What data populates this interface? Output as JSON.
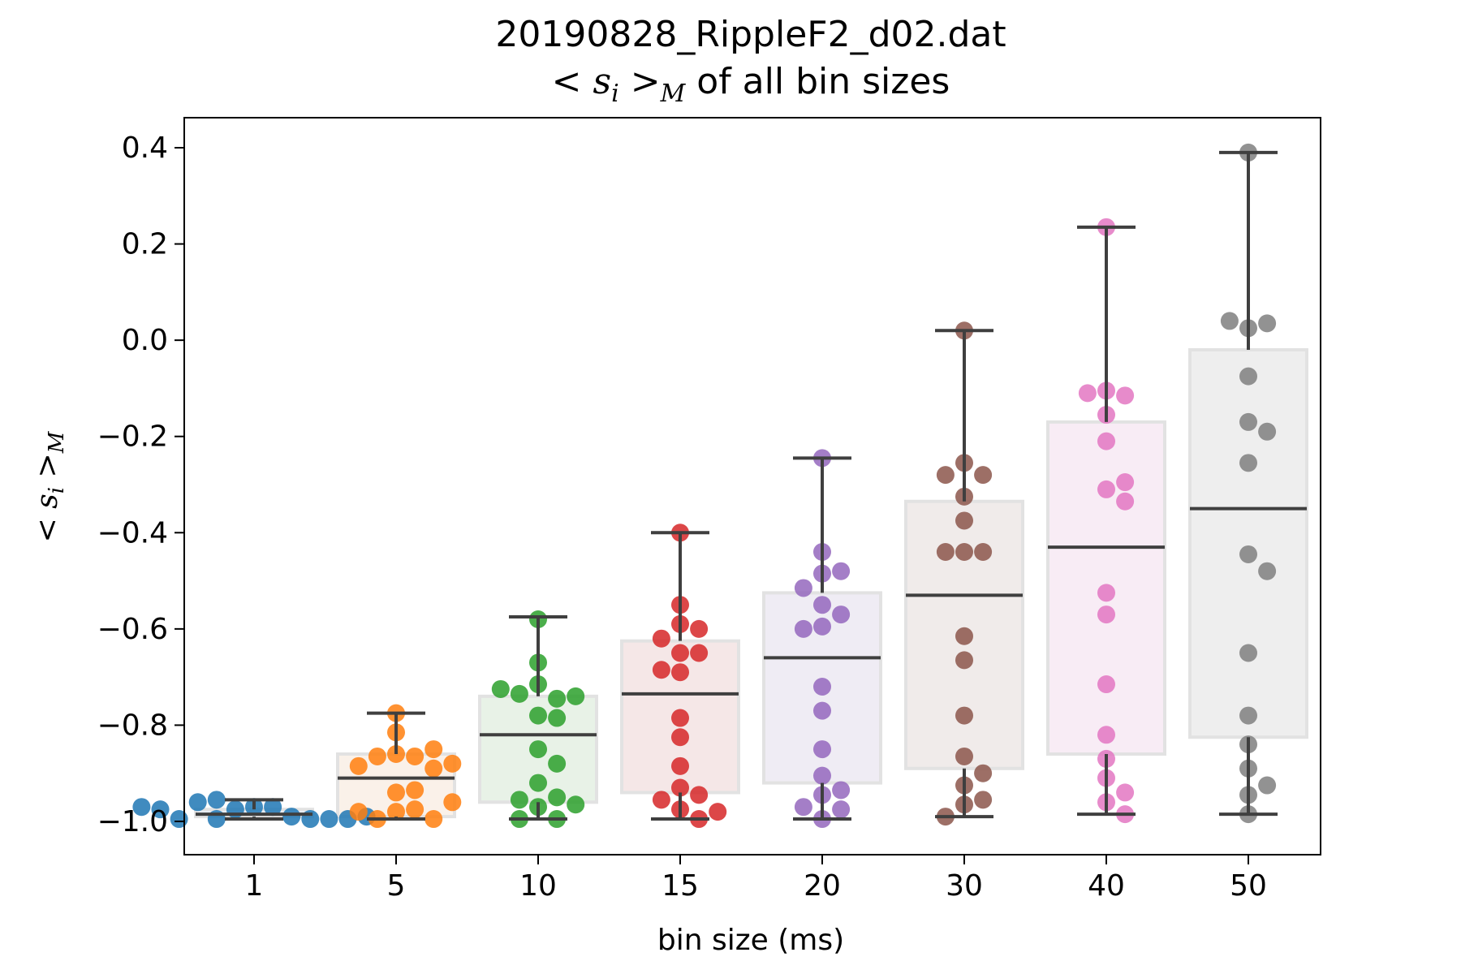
{
  "chart_data": {
    "type": "box",
    "title_line1": "20190828_RippleF2_d02.dat",
    "title_line2_math": "< s",
    "title_line2_sub": "i",
    "title_line2_gt": " >",
    "title_line2_m": "M",
    "title_line2_rest": " of all bin sizes",
    "ylabel_math": "< s",
    "ylabel_sub": "i",
    "ylabel_gt": " >",
    "ylabel_m": "M",
    "xlabel": "bin size (ms)",
    "ylim": [
      -1.07,
      0.46
    ],
    "yticks": [
      0.4,
      0.2,
      0.0,
      -0.2,
      -0.4,
      -0.6,
      -0.8,
      -1.0
    ],
    "ytick_labels": [
      "0.4",
      "0.2",
      "0.0",
      "−0.2",
      "−0.4",
      "−0.6",
      "−0.8",
      "−1.0"
    ],
    "categories": [
      "1",
      "5",
      "10",
      "15",
      "20",
      "30",
      "40",
      "50"
    ],
    "colors": [
      "#1f77b4",
      "#ff7f0e",
      "#2ca02c",
      "#d62728",
      "#9467bd",
      "#8c564b",
      "#e377c2",
      "#7f7f7f"
    ],
    "box_fills": [
      "#e8eef4",
      "#faf1e9",
      "#e8f2e7",
      "#f5e7e7",
      "#efecf4",
      "#f0ebea",
      "#f8ecf5",
      "#eeeeee"
    ],
    "grid": false,
    "legend": "none",
    "boxes": [
      {
        "category": "1",
        "whislo": -0.995,
        "q1": -0.99,
        "median": -0.985,
        "q3": -0.975,
        "whishi": -0.955
      },
      {
        "category": "5",
        "whislo": -0.995,
        "q1": -0.99,
        "median": -0.91,
        "q3": -0.86,
        "whishi": -0.775
      },
      {
        "category": "10",
        "whislo": -0.995,
        "q1": -0.96,
        "median": -0.82,
        "q3": -0.74,
        "whishi": -0.575
      },
      {
        "category": "15",
        "whislo": -0.995,
        "q1": -0.94,
        "median": -0.735,
        "q3": -0.625,
        "whishi": -0.4
      },
      {
        "category": "20",
        "whislo": -0.995,
        "q1": -0.92,
        "median": -0.66,
        "q3": -0.525,
        "whishi": -0.245
      },
      {
        "category": "30",
        "whislo": -0.99,
        "q1": -0.89,
        "median": -0.53,
        "q3": -0.335,
        "whishi": 0.02
      },
      {
        "category": "40",
        "whislo": -0.985,
        "q1": -0.86,
        "median": -0.43,
        "q3": -0.17,
        "whishi": 0.235
      },
      {
        "category": "50",
        "whislo": -0.985,
        "q1": -0.825,
        "median": -0.35,
        "q3": -0.02,
        "whishi": 0.39
      }
    ],
    "points": [
      [
        -0.97,
        -0.97,
        -0.975,
        -0.99,
        -0.995,
        -0.995,
        -0.96,
        -0.955,
        -0.995,
        -0.995,
        -0.995,
        -0.975,
        -0.99,
        -0.97
      ],
      [
        -0.86,
        -0.865,
        -0.865,
        -0.775,
        -0.815,
        -0.85,
        -0.885,
        -0.89,
        -0.88,
        -0.94,
        -0.935,
        -0.975,
        -0.98,
        -0.995,
        -0.995,
        -0.98,
        -0.96
      ],
      [
        -0.58,
        -0.67,
        -0.715,
        -0.745,
        -0.735,
        -0.74,
        -0.725,
        -0.78,
        -0.785,
        -0.85,
        -0.88,
        -0.92,
        -0.95,
        -0.955,
        -0.97,
        -0.965,
        -0.995,
        -0.995
      ],
      [
        -0.4,
        -0.55,
        -0.59,
        -0.6,
        -0.62,
        -0.65,
        -0.65,
        -0.685,
        -0.69,
        -0.785,
        -0.825,
        -0.885,
        -0.93,
        -0.945,
        -0.955,
        -0.975,
        -0.98,
        -0.995
      ],
      [
        -0.245,
        -0.44,
        -0.485,
        -0.48,
        -0.515,
        -0.55,
        -0.57,
        -0.595,
        -0.6,
        -0.72,
        -0.77,
        -0.85,
        -0.905,
        -0.935,
        -0.945,
        -0.97,
        -0.975,
        -0.995
      ],
      [
        0.02,
        -0.255,
        -0.28,
        -0.28,
        -0.325,
        -0.375,
        -0.44,
        -0.44,
        -0.44,
        -0.615,
        -0.665,
        -0.78,
        -0.865,
        -0.9,
        -0.925,
        -0.955,
        -0.965,
        -0.99
      ],
      [
        0.235,
        -0.105,
        -0.115,
        -0.11,
        -0.155,
        -0.21,
        -0.31,
        -0.295,
        -0.335,
        -0.525,
        -0.57,
        -0.715,
        -0.82,
        -0.87,
        -0.91,
        -0.94,
        -0.96,
        -0.985
      ],
      [
        0.39,
        0.025,
        0.035,
        0.04,
        -0.075,
        -0.17,
        -0.19,
        -0.255,
        -0.445,
        -0.48,
        -0.65,
        -0.78,
        -0.84,
        -0.89,
        -0.925,
        -0.945,
        -0.985
      ]
    ]
  }
}
